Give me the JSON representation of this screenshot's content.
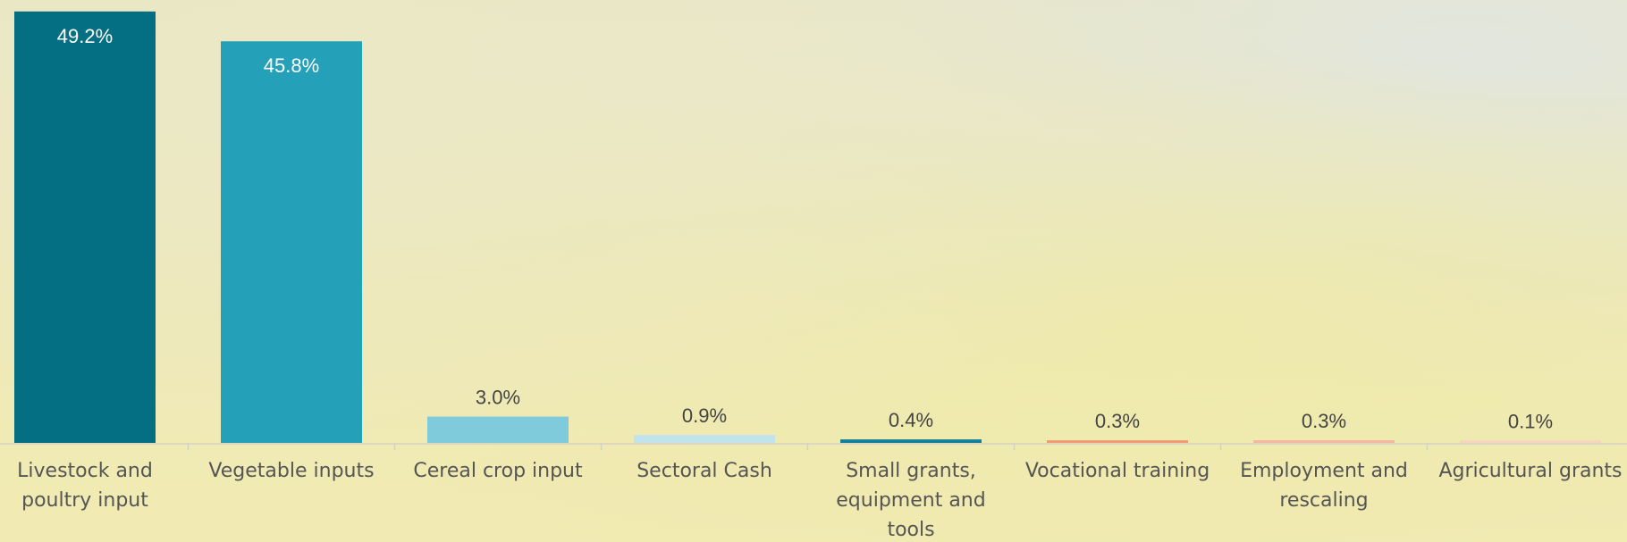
{
  "chart_data": {
    "type": "bar",
    "categories": [
      "Livestock and poultry input",
      "Vegetable inputs",
      "Cereal crop input",
      "Sectoral Cash",
      "Small grants, equipment and tools",
      "Vocational training",
      "Employment and rescaling",
      "Agricultural grants"
    ],
    "values": [
      49.2,
      45.8,
      3.0,
      0.9,
      0.4,
      0.3,
      0.3,
      0.1
    ],
    "value_labels": [
      "49.2%",
      "45.8%",
      "3.0%",
      "0.9%",
      "0.4%",
      "0.3%",
      "0.3%",
      "0.1%"
    ],
    "colors": [
      "#046e82",
      "#24a1b9",
      "#7fcadb",
      "#c0e3ec",
      "#13809b",
      "#f29a76",
      "#f4b8a0",
      "#f7d3c0"
    ],
    "ylim": [
      0,
      50
    ]
  }
}
